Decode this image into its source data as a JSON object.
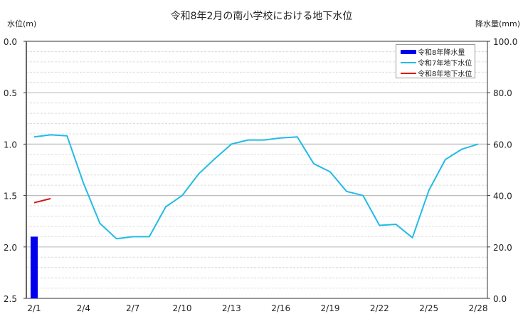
{
  "title": "令和8年2月の南小学校における地下水位",
  "left_axis_title": "水位(m)",
  "right_axis_title": "降水量(mm)",
  "legend": [
    {
      "label": "令和8年降水量",
      "type": "bar",
      "color": "#0000ee"
    },
    {
      "label": "令和7年地下水位",
      "type": "line",
      "color": "#22bbe6"
    },
    {
      "label": "令和8年地下水位",
      "type": "line",
      "color": "#dd1111"
    }
  ],
  "chart_data": {
    "type": "line",
    "title": "令和8年2月の南小学校における地下水位",
    "xlabel": "",
    "ylabel": "水位(m)",
    "y2label": "降水量(mm)",
    "ylim": [
      0.0,
      2.5
    ],
    "y_inverted": true,
    "y2lim": [
      0.0,
      100.0
    ],
    "y_ticks": [
      "0.0",
      "0.5",
      "1.0",
      "1.5",
      "2.0",
      "2.5"
    ],
    "y2_ticks": [
      "100.0",
      "80.0",
      "60.0",
      "40.0",
      "20.0",
      "0.0"
    ],
    "x_tick_labels": [
      "2/1",
      "2/4",
      "2/7",
      "2/10",
      "2/13",
      "2/16",
      "2/19",
      "2/22",
      "2/25",
      "2/28"
    ],
    "x": [
      "2/1",
      "2/2",
      "2/3",
      "2/4",
      "2/5",
      "2/6",
      "2/7",
      "2/8",
      "2/9",
      "2/10",
      "2/11",
      "2/12",
      "2/13",
      "2/14",
      "2/15",
      "2/16",
      "2/17",
      "2/18",
      "2/19",
      "2/20",
      "2/21",
      "2/22",
      "2/23",
      "2/24",
      "2/25",
      "2/26",
      "2/27",
      "2/28"
    ],
    "grid": true,
    "legend_position": "top-right",
    "series": [
      {
        "name": "令和8年降水量",
        "type": "bar",
        "axis": "right",
        "color": "#0000ee",
        "values": [
          24.0
        ]
      },
      {
        "name": "令和7年地下水位",
        "type": "line",
        "axis": "left",
        "color": "#22bbe6",
        "values": [
          0.93,
          0.91,
          0.92,
          1.38,
          1.77,
          1.92,
          1.9,
          1.9,
          1.61,
          1.5,
          1.29,
          1.14,
          1.0,
          0.96,
          0.96,
          0.94,
          0.93,
          1.19,
          1.27,
          1.46,
          1.5,
          1.79,
          1.78,
          1.91,
          1.45,
          1.15,
          1.05,
          1.0
        ]
      },
      {
        "name": "令和8年地下水位",
        "type": "line",
        "axis": "left",
        "color": "#dd1111",
        "values": [
          1.57,
          1.53
        ]
      }
    ]
  }
}
